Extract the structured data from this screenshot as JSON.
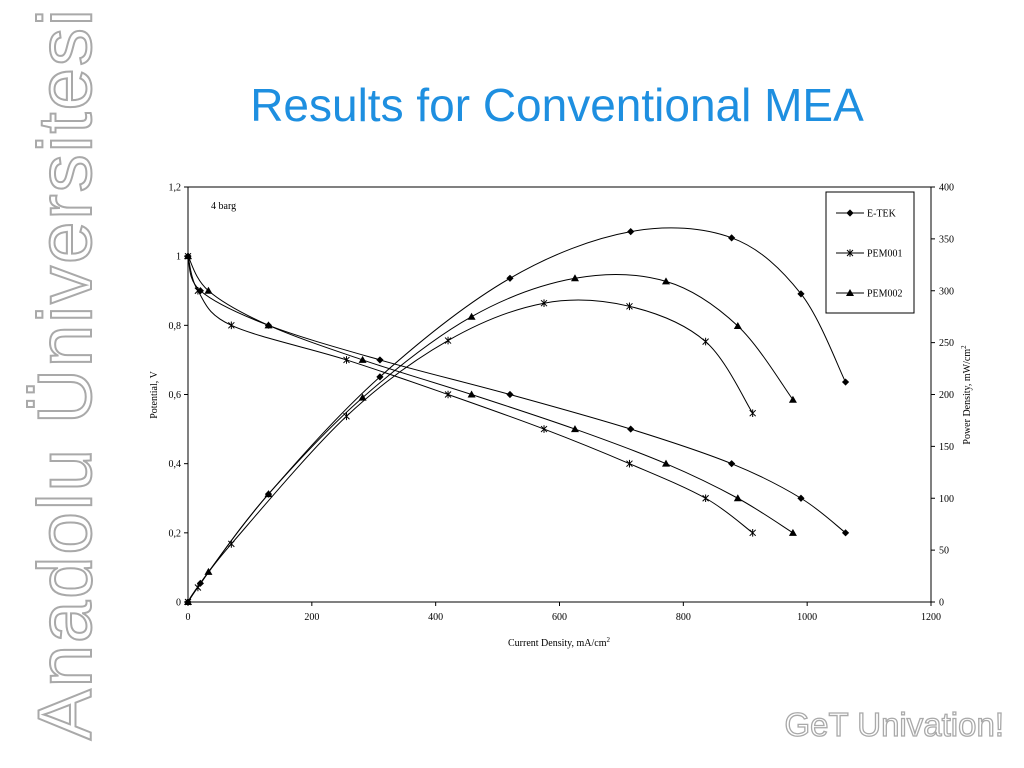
{
  "slide": {
    "title": "Results for Conventional MEA",
    "side_brand": "Anadolu Üniversitesi",
    "tagline": "GeT Univation!"
  },
  "colors": {
    "title": "#1e8fe0",
    "brand_outline": "#a9a9a9"
  },
  "chart_data": {
    "type": "line",
    "annotation": "4 barg",
    "xlabel": "Current Density, mA/cm",
    "xlabel_sup": "2",
    "ylabel": "Potential, V",
    "y2label": "Power Density, mW/cm",
    "y2label_sup": "2",
    "xlim": [
      0,
      1200
    ],
    "ylim": [
      0,
      1.2
    ],
    "y2lim": [
      0,
      400
    ],
    "xticks": [
      "0",
      "200",
      "400",
      "600",
      "800",
      "1000",
      "1200"
    ],
    "yticks": [
      "0",
      "0,2",
      "0,4",
      "0,6",
      "0,8",
      "1",
      "1,2"
    ],
    "y2ticks": [
      "0",
      "50",
      "100",
      "150",
      "200",
      "250",
      "300",
      "350",
      "400"
    ],
    "legend_position": "top-right",
    "series": [
      {
        "name": "E-TEK",
        "marker": "diamond",
        "polarization": [
          [
            0,
            1.0
          ],
          [
            20,
            0.9
          ],
          [
            130,
            0.8
          ],
          [
            310,
            0.7
          ],
          [
            520,
            0.6
          ],
          [
            715,
            0.5
          ],
          [
            878,
            0.4
          ],
          [
            990,
            0.3
          ],
          [
            1062,
            0.2
          ]
        ],
        "power": [
          [
            0,
            0
          ],
          [
            20,
            18
          ],
          [
            130,
            104
          ],
          [
            310,
            217
          ],
          [
            520,
            312
          ],
          [
            715,
            357
          ],
          [
            878,
            351
          ],
          [
            990,
            297
          ],
          [
            1062,
            212
          ]
        ]
      },
      {
        "name": "PEM001",
        "marker": "star",
        "polarization": [
          [
            0,
            1.0
          ],
          [
            16,
            0.9
          ],
          [
            70,
            0.8
          ],
          [
            256,
            0.7
          ],
          [
            420,
            0.6
          ],
          [
            575,
            0.5
          ],
          [
            713,
            0.4
          ],
          [
            836,
            0.3
          ],
          [
            912,
            0.2
          ]
        ],
        "power": [
          [
            0,
            0
          ],
          [
            16,
            14
          ],
          [
            70,
            56
          ],
          [
            256,
            179
          ],
          [
            420,
            252
          ],
          [
            575,
            288
          ],
          [
            713,
            285
          ],
          [
            836,
            251
          ],
          [
            912,
            182
          ]
        ]
      },
      {
        "name": "PEM002",
        "marker": "triangle",
        "polarization": [
          [
            0,
            1.0
          ],
          [
            33,
            0.9
          ],
          [
            130,
            0.8
          ],
          [
            282,
            0.7
          ],
          [
            458,
            0.6
          ],
          [
            625,
            0.5
          ],
          [
            772,
            0.4
          ],
          [
            888,
            0.3
          ],
          [
            977,
            0.2
          ]
        ],
        "power": [
          [
            0,
            0
          ],
          [
            33,
            29
          ],
          [
            130,
            104
          ],
          [
            282,
            197
          ],
          [
            458,
            275
          ],
          [
            625,
            312
          ],
          [
            772,
            309
          ],
          [
            888,
            266
          ],
          [
            977,
            195
          ]
        ]
      }
    ]
  }
}
